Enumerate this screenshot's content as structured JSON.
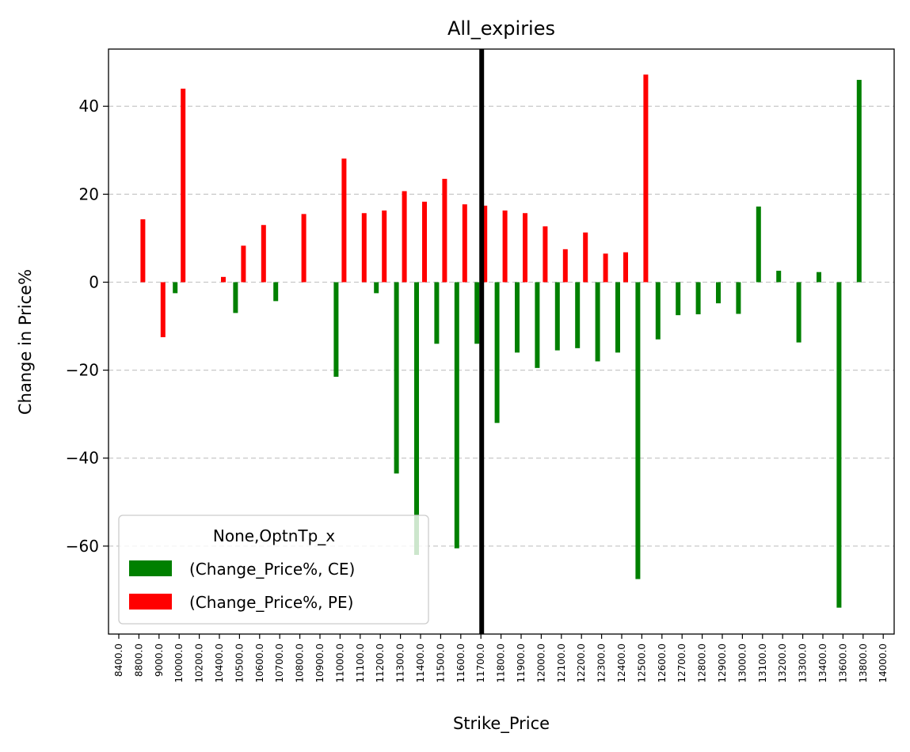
{
  "chart_data": {
    "type": "bar",
    "title": "All_expiries",
    "xlabel": "Strike_Price",
    "ylabel": "Change in Price%",
    "ylim": [
      -80,
      53
    ],
    "yticks": [
      -60,
      -40,
      -20,
      0,
      20,
      40
    ],
    "ytick_labels": [
      "−60",
      "−40",
      "−20",
      "0",
      "20",
      "40"
    ],
    "grid": "y-dashed",
    "legend_position": "lower-left",
    "legend_title": "None,OptnTp_x",
    "categories": [
      "8400.0",
      "8800.0",
      "9000.0",
      "10000.0",
      "10200.0",
      "10400.0",
      "10500.0",
      "10600.0",
      "10700.0",
      "10800.0",
      "10900.0",
      "11000.0",
      "11100.0",
      "11200.0",
      "11300.0",
      "11400.0",
      "11500.0",
      "11600.0",
      "11700.0",
      "11800.0",
      "11900.0",
      "12000.0",
      "12100.0",
      "12200.0",
      "12300.0",
      "12400.0",
      "12500.0",
      "12600.0",
      "12700.0",
      "12800.0",
      "12900.0",
      "13000.0",
      "13100.0",
      "13200.0",
      "13300.0",
      "13400.0",
      "13600.0",
      "13800.0",
      "14000.0"
    ],
    "vertical_line_at": "11700.0",
    "series": [
      {
        "name": "(Change_Price%, CE)",
        "color": "#008000",
        "values": [
          null,
          null,
          null,
          -2.5,
          null,
          null,
          -7,
          null,
          -4.3,
          null,
          null,
          -21.5,
          null,
          -2.5,
          -43.5,
          -62,
          -14,
          -60.5,
          -14,
          -32,
          -16,
          -19.5,
          -15.5,
          -15,
          -18,
          -16,
          -67.5,
          -13,
          -7.5,
          -7.3,
          -4.8,
          -7.2,
          17.2,
          2.6,
          -13.7,
          2.3,
          -74,
          46,
          null
        ]
      },
      {
        "name": "(Change_Price%, PE)",
        "color": "#ff0000",
        "values": [
          null,
          14.3,
          -12.5,
          44,
          null,
          1.2,
          8.3,
          13,
          null,
          15.5,
          null,
          28.1,
          15.7,
          16.3,
          20.7,
          18.3,
          23.5,
          17.7,
          17.4,
          16.3,
          15.7,
          12.7,
          7.5,
          11.3,
          6.5,
          6.8,
          47.2,
          null,
          null,
          null,
          null,
          null,
          null,
          null,
          null,
          null,
          null,
          null,
          null
        ]
      }
    ]
  }
}
